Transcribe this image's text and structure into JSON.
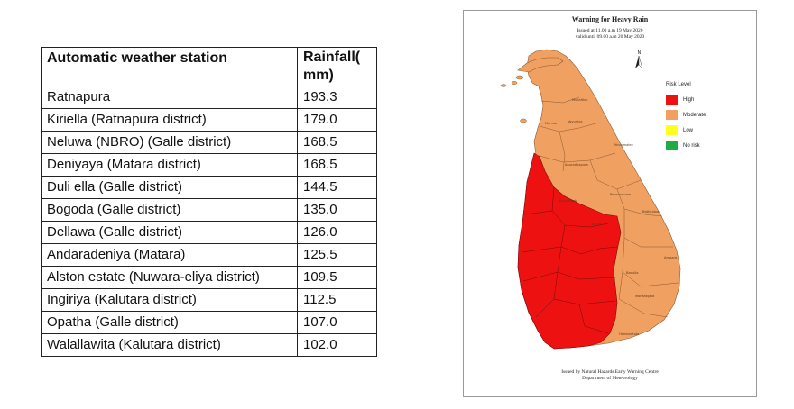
{
  "table": {
    "headers": {
      "station": "Automatic weather station",
      "rainfall": "Rainfall( mm)"
    },
    "rows": [
      {
        "station": "Ratnapura",
        "rainfall": "193.3"
      },
      {
        "station": "Kiriella (Ratnapura district)",
        "rainfall": "179.0"
      },
      {
        "station": "Neluwa (NBRO) (Galle district)",
        "rainfall": "168.5"
      },
      {
        "station": "Deniyaya (Matara district)",
        "rainfall": "168.5"
      },
      {
        "station": "Duli ella (Galle district)",
        "rainfall": "144.5"
      },
      {
        "station": "Bogoda (Galle district)",
        "rainfall": "135.0"
      },
      {
        "station": "Dellawa (Galle district)",
        "rainfall": "126.0"
      },
      {
        "station": "Andaradeniya (Matara)",
        "rainfall": "125.5"
      },
      {
        "station": "Alston estate (Nuwara-eliya district)",
        "rainfall": "109.5"
      },
      {
        "station": "Ingiriya (Kalutara district)",
        "rainfall": "112.5"
      },
      {
        "station": "Opatha (Galle district)",
        "rainfall": "107.0"
      },
      {
        "station": "Walallawita (Kalutara district)",
        "rainfall": "102.0"
      }
    ]
  },
  "map": {
    "title": "Warning for Heavy Rain",
    "issued": "Issued at 11.00 a.m 19 May 2020",
    "valid": "valid until 09.00 a.m 20 May 2020",
    "north_label": "N",
    "legend": {
      "title": "Risk Level",
      "items": [
        {
          "label": "High",
          "color": "#ee1111"
        },
        {
          "label": "Moderate",
          "color": "#f0a060"
        },
        {
          "label": "Low",
          "color": "#ffff22"
        },
        {
          "label": "No risk",
          "color": "#22aa44"
        }
      ]
    },
    "districts": [
      "Mullaitivu",
      "Vavuniya",
      "Mannar",
      "Trincomalee",
      "Anuradhapura",
      "Polonnaruwa",
      "Batticaloa",
      "Kurunegala",
      "Kandy",
      "Badulla",
      "Ampara",
      "Monaragala",
      "Hambantota"
    ],
    "footer_line1": "Issued by Natural Hazards Early Warning Centre",
    "footer_line2": "Department of Meteorology"
  }
}
